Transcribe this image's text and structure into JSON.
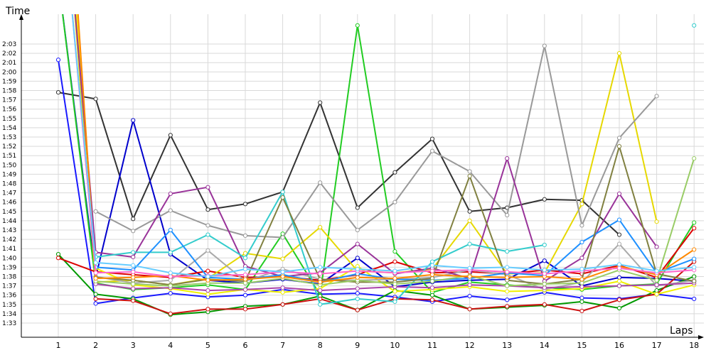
{
  "chart_data": {
    "type": "line",
    "xlabel": "Laps",
    "ylabel": "Time",
    "x": [
      1,
      2,
      3,
      4,
      5,
      6,
      7,
      8,
      9,
      10,
      11,
      12,
      13,
      14,
      15,
      16,
      17,
      18
    ],
    "y_ticks": [
      "1:33",
      "1:34",
      "1:35",
      "1:36",
      "1:37",
      "1:38",
      "1:39",
      "1:40",
      "1:41",
      "1:42",
      "1:43",
      "1:44",
      "1:45",
      "1:46",
      "1:47",
      "1:48",
      "1:49",
      "1:50",
      "1:51",
      "1:52",
      "1:53",
      "1:54",
      "1:55",
      "1:56",
      "1:57",
      "1:58",
      "1:59",
      "2:00",
      "2:01",
      "2:02",
      "2:03"
    ],
    "ylim_seconds": [
      93,
      123
    ],
    "grid": true,
    "legend": "none",
    "series": [
      {
        "color": "#333333",
        "values": [
          117.8,
          117.1,
          104.2,
          113.2,
          105.2,
          105.8,
          107.1,
          116.7,
          105.4,
          109.2,
          112.8,
          105.0,
          105.4,
          106.3,
          106.2,
          102.5,
          null,
          null
        ]
      },
      {
        "color": "#0000cc",
        "values": [
          130,
          97.9,
          114.8,
          100.4,
          97.6,
          97.3,
          97.7,
          97.2,
          100.0,
          96.9,
          97.4,
          97.6,
          97.7,
          99.7,
          97.0,
          97.9,
          97.8,
          97.5
        ]
      },
      {
        "color": "#1a1aff",
        "values": [
          121.3,
          95.1,
          95.7,
          96.2,
          95.8,
          96.0,
          96.6,
          96.1,
          96.2,
          95.8,
          95.3,
          95.9,
          95.5,
          96.3,
          95.7,
          95.6,
          96.1,
          95.6
        ]
      },
      {
        "color": "#22cc22",
        "values": [
          130,
          97.3,
          96.6,
          96.8,
          97.1,
          96.6,
          102.6,
          96.0,
          125,
          100.7,
          96.3,
          97.4,
          97.1,
          96.8,
          96.6,
          97.0,
          97.2,
          103.8
        ]
      },
      {
        "color": "#009900",
        "values": [
          100.4,
          96.1,
          95.6,
          93.9,
          94.2,
          94.8,
          95.0,
          95.9,
          94.4,
          96.5,
          96.0,
          94.5,
          94.7,
          94.9,
          95.3,
          94.6,
          96.5,
          98.0
        ]
      },
      {
        "color": "#dd0000",
        "values": [
          100.0,
          98.5,
          98.2,
          97.9,
          98.6,
          97.9,
          98.0,
          97.6,
          98.2,
          99.6,
          98.4,
          98.5,
          98.3,
          98.7,
          98.3,
          99.2,
          97.9,
          103.2
        ]
      },
      {
        "color": "#cc1111",
        "values": [
          null,
          95.6,
          95.4,
          94.0,
          94.5,
          94.5,
          95.0,
          95.6,
          94.4,
          95.6,
          95.5,
          94.5,
          94.8,
          95.0,
          94.3,
          95.5,
          96.1,
          99.6
        ]
      },
      {
        "color": "#e6d800",
        "values": [
          149.2,
          97.4,
          97.6,
          97.1,
          97.8,
          100.5,
          99.9,
          103.3,
          98.6,
          98.4,
          98.8,
          104.0,
          98.3,
          98.4,
          105.8,
          122.0,
          103.9,
          null
        ]
      },
      {
        "color": "#f0f000",
        "values": [
          152.2,
          98.9,
          97.1,
          96.7,
          96.1,
          96.6,
          96.3,
          96.7,
          99.1,
          96.4,
          96.6,
          96.9,
          96.4,
          96.5,
          96.7,
          97.5,
          96.1,
          97.1
        ]
      },
      {
        "color": "#999999",
        "values": [
          null,
          105.0,
          102.9,
          105.1,
          103.5,
          102.4,
          102.2,
          108.1,
          103.0,
          106.0,
          111.5,
          109.3,
          104.6,
          122.8,
          103.5,
          112.9,
          117.4,
          null
        ]
      },
      {
        "color": "#aaaaaa",
        "values": [
          null,
          98.0,
          97.3,
          97.6,
          100.8,
          97.5,
          98.8,
          97.7,
          97.6,
          97.7,
          97.9,
          98.7,
          98.2,
          96.6,
          97.4,
          101.5,
          97.0,
          97.6
        ]
      },
      {
        "color": "#993399",
        "values": [
          147.5,
          100.6,
          100.1,
          106.9,
          107.6,
          99.1,
          98.0,
          98.4,
          101.5,
          98.3,
          98.9,
          97.8,
          110.7,
          97.5,
          100.0,
          106.9,
          101.2,
          null
        ]
      },
      {
        "color": "#aa44aa",
        "values": [
          null,
          97.2,
          96.7,
          96.8,
          96.5,
          96.6,
          96.8,
          96.5,
          96.7,
          96.9,
          96.8,
          97.1,
          97.0,
          96.8,
          96.9,
          97.0,
          97.1,
          97.3
        ]
      },
      {
        "color": "#33cccc",
        "values": [
          null,
          100.1,
          100.6,
          100.6,
          102.5,
          100.0,
          107.1,
          95.0,
          95.6,
          95.3,
          99.6,
          101.5,
          100.7,
          101.4,
          null,
          null,
          null,
          125
        ]
      },
      {
        "color": "#1e90ff",
        "values": [
          null,
          99.0,
          98.7,
          103.0,
          97.9,
          97.7,
          98.2,
          97.4,
          98.3,
          97.7,
          97.6,
          97.8,
          98.4,
          98.1,
          101.7,
          104.1,
          98.4,
          99.9
        ]
      },
      {
        "color": "#808040",
        "values": [
          null,
          97.9,
          97.6,
          97.1,
          97.7,
          97.5,
          106.5,
          97.7,
          97.4,
          97.4,
          97.8,
          108.8,
          97.6,
          97.2,
          97.7,
          112.0,
          98.3,
          97.5
        ]
      },
      {
        "color": "#99cc66",
        "values": [
          null,
          97.5,
          97.2,
          97.0,
          97.3,
          97.3,
          97.8,
          97.1,
          97.6,
          97.2,
          97.5,
          98.1,
          97.0,
          97.2,
          97.3,
          98.7,
          97.6,
          110.7
        ]
      },
      {
        "color": "#ff8800",
        "values": [
          158.0,
          97.8,
          97.9,
          98.1,
          97.6,
          97.7,
          98.0,
          97.4,
          97.9,
          97.8,
          98.2,
          98.0,
          97.9,
          98.0,
          97.7,
          99.1,
          98.2,
          100.9
        ]
      },
      {
        "color": "#ff66cc",
        "values": [
          143.0,
          98.4,
          98.5,
          98.0,
          98.1,
          98.2,
          98.5,
          98.3,
          98.6,
          98.4,
          98.6,
          98.7,
          98.5,
          98.3,
          98.6,
          98.9,
          98.4,
          98.7
        ]
      },
      {
        "color": "#66ccff",
        "values": [
          142.2,
          99.5,
          99.2,
          98.4,
          98.0,
          98.8,
          98.5,
          99.0,
          98.8,
          98.6,
          99.2,
          98.9,
          99.0,
          98.7,
          98.8,
          99.3,
          98.6,
          99.0
        ]
      }
    ]
  }
}
